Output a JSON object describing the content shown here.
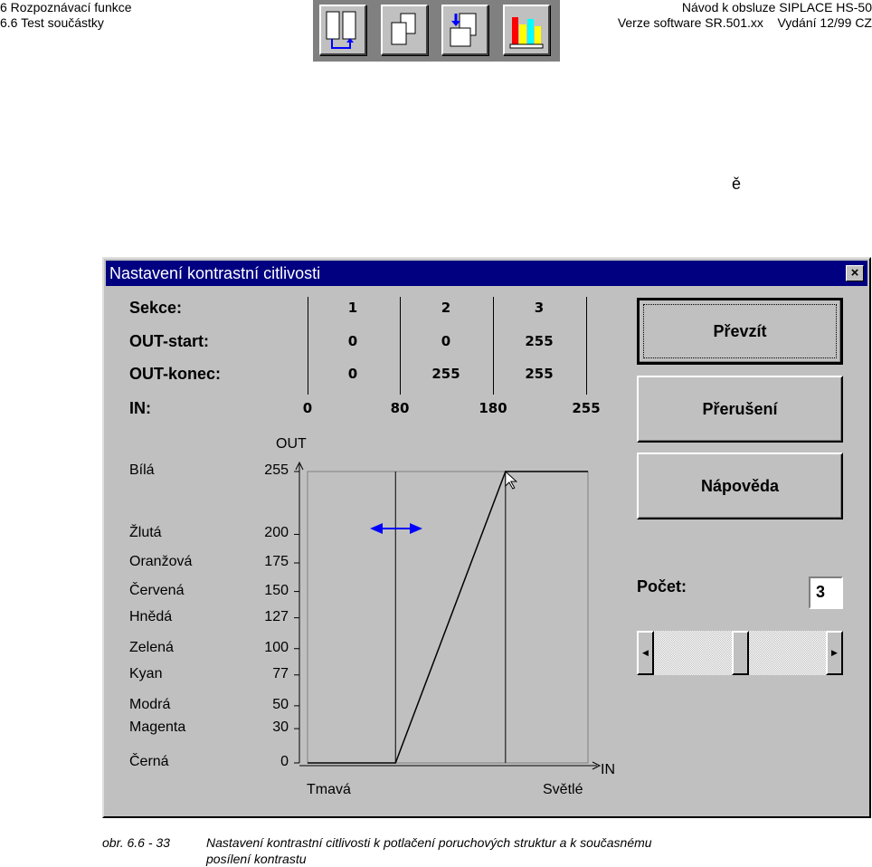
{
  "header": {
    "left_line1": "6 Rozpoznávací funkce",
    "left_line2": "6.6 Test součástky",
    "right_line1": "Návod k obsluze SIPLACE HS-50",
    "right_line2": "Verze software SR.501.xx    Vydání 12/99 CZ",
    "stray_char": "ě"
  },
  "toolbar": {
    "icons": [
      "two-columns-icon",
      "pages-icon",
      "document-swap-icon",
      "books-icon"
    ]
  },
  "dialog": {
    "title": "Nastavení kontrastní citlivosti",
    "close": "×",
    "rows": {
      "sekce": "Sekce:",
      "out_start": "OUT-start:",
      "out_konec": "OUT-konec:",
      "in": "IN:"
    },
    "sekce_values": [
      "1",
      "2",
      "3"
    ],
    "out_start_values": [
      "0",
      "0",
      "255"
    ],
    "out_konec_values": [
      "0",
      "255",
      "255"
    ],
    "in_values": [
      "0",
      "80",
      "180",
      "255"
    ],
    "buttons": {
      "prevzit": "Převzít",
      "preruseni": "Přerušení",
      "napoveda": "Nápověda"
    },
    "pocet_label": "Počet:",
    "pocet_value": "3",
    "scroll_value_fraction": 0.5,
    "graph": {
      "out_label": "OUT",
      "in_label": "IN",
      "x_left": "Tmavá",
      "x_right": "Světlé",
      "levels": [
        {
          "name": "Bílá",
          "value": "255"
        },
        {
          "name": "Žlutá",
          "value": "200"
        },
        {
          "name": "Oranžová",
          "value": "175"
        },
        {
          "name": "Červená",
          "value": "150"
        },
        {
          "name": "Hnědá",
          "value": "127"
        },
        {
          "name": "Zelená",
          "value": "100"
        },
        {
          "name": "Kyan",
          "value": "77"
        },
        {
          "name": "Modrá",
          "value": "50"
        },
        {
          "name": "Magenta",
          "value": "30"
        },
        {
          "name": "Černá",
          "value": "0"
        }
      ],
      "curve": [
        [
          0,
          0
        ],
        [
          80,
          0
        ],
        [
          180,
          255
        ],
        [
          255,
          255
        ]
      ],
      "section_bounds": [
        80,
        180
      ],
      "arrow_color": "#0000ff"
    }
  },
  "caption": {
    "label": "obr. 6.6 - 33",
    "text1": "Nastavení kontrastní citlivosti k potlačení poruchových struktur a k současnému",
    "text2": "posílení kontrastu"
  }
}
